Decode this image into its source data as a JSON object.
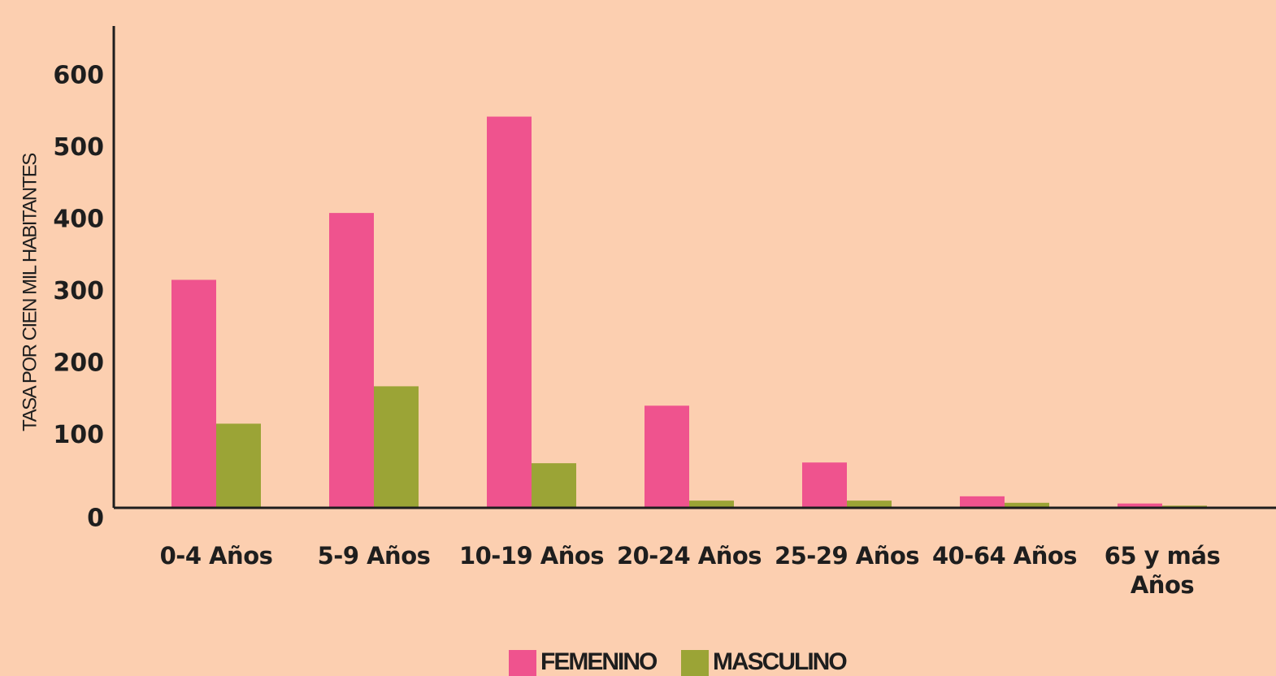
{
  "chart_data": {
    "type": "bar",
    "y_label": "TASA POR CIEN MIL HABITANTES",
    "categories": [
      "0-4 Años",
      "5-9 Años",
      "10-19 Años",
      "20-24 Años",
      "25-29 Años",
      "40-64 Años",
      "65 y más Años"
    ],
    "series": [
      {
        "name": "FEMENINO",
        "color": "#ef538e",
        "values": [
          317,
          410,
          544,
          142,
          63,
          16,
          6
        ]
      },
      {
        "name": "MASCULINO",
        "color": "#9ba436",
        "values": [
          117,
          169,
          62,
          10,
          10,
          7,
          3
        ]
      }
    ],
    "ylim": [
      0,
      670
    ],
    "yticks": [
      0,
      100,
      200,
      300,
      400,
      500,
      600
    ],
    "grid": false,
    "legend": "bottom"
  }
}
